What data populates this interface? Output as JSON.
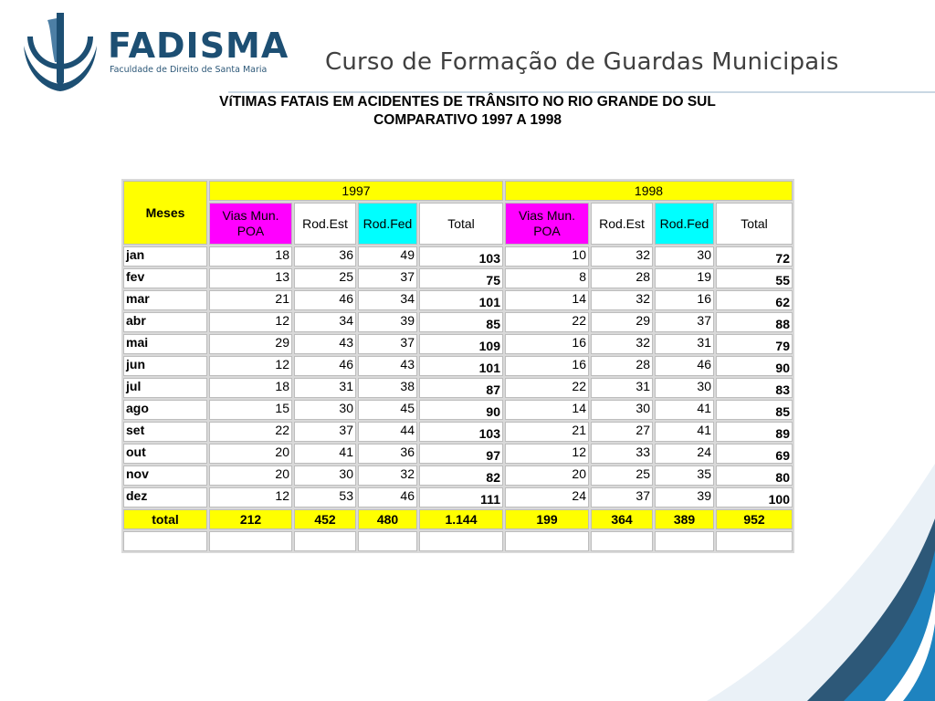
{
  "header": {
    "brand_name": "FADISMA",
    "brand_subtitle": "Faculdade de Direito de Santa Maria",
    "course_title": "Curso de Formação de Guardas Municipais",
    "logo_icon": "fadisma-logo-icon",
    "brand_color": "#1d4f73"
  },
  "document": {
    "title_line1": "VíTIMAS FATAIS EM ACIDENTES DE TRÂNSITO NO RIO GRANDE DO SUL",
    "title_line2": "COMPARATIVO 1997 A 1998"
  },
  "table": {
    "months_header": "Meses",
    "years": [
      "1997",
      "1998"
    ],
    "columns": [
      "Vias Mun. POA",
      "Rod.Est",
      "Rod.Fed",
      "Total"
    ],
    "rows": [
      {
        "month": "jan",
        "y1997": [
          "18",
          "36",
          "49",
          "103"
        ],
        "y1998": [
          "10",
          "32",
          "30",
          "72"
        ]
      },
      {
        "month": "fev",
        "y1997": [
          "13",
          "25",
          "37",
          "75"
        ],
        "y1998": [
          "8",
          "28",
          "19",
          "55"
        ]
      },
      {
        "month": "mar",
        "y1997": [
          "21",
          "46",
          "34",
          "101"
        ],
        "y1998": [
          "14",
          "32",
          "16",
          "62"
        ]
      },
      {
        "month": "abr",
        "y1997": [
          "12",
          "34",
          "39",
          "85"
        ],
        "y1998": [
          "22",
          "29",
          "37",
          "88"
        ]
      },
      {
        "month": "mai",
        "y1997": [
          "29",
          "43",
          "37",
          "109"
        ],
        "y1998": [
          "16",
          "32",
          "31",
          "79"
        ]
      },
      {
        "month": "jun",
        "y1997": [
          "12",
          "46",
          "43",
          "101"
        ],
        "y1998": [
          "16",
          "28",
          "46",
          "90"
        ]
      },
      {
        "month": "jul",
        "y1997": [
          "18",
          "31",
          "38",
          "87"
        ],
        "y1998": [
          "22",
          "31",
          "30",
          "83"
        ]
      },
      {
        "month": "ago",
        "y1997": [
          "15",
          "30",
          "45",
          "90"
        ],
        "y1998": [
          "14",
          "30",
          "41",
          "85"
        ]
      },
      {
        "month": "set",
        "y1997": [
          "22",
          "37",
          "44",
          "103"
        ],
        "y1998": [
          "21",
          "27",
          "41",
          "89"
        ]
      },
      {
        "month": "out",
        "y1997": [
          "20",
          "41",
          "36",
          "97"
        ],
        "y1998": [
          "12",
          "33",
          "24",
          "69"
        ]
      },
      {
        "month": "nov",
        "y1997": [
          "20",
          "30",
          "32",
          "82"
        ],
        "y1998": [
          "20",
          "25",
          "35",
          "80"
        ]
      },
      {
        "month": "dez",
        "y1997": [
          "12",
          "53",
          "46",
          "111"
        ],
        "y1998": [
          "24",
          "37",
          "39",
          "100"
        ]
      }
    ],
    "totals": {
      "label": "total",
      "y1997": [
        "212",
        "452",
        "480",
        "1.144"
      ],
      "y1998": [
        "199",
        "364",
        "389",
        "952"
      ]
    },
    "colors": {
      "header": "#ffff00",
      "vias": "#ff00ff",
      "rodfed": "#00ffff"
    }
  }
}
